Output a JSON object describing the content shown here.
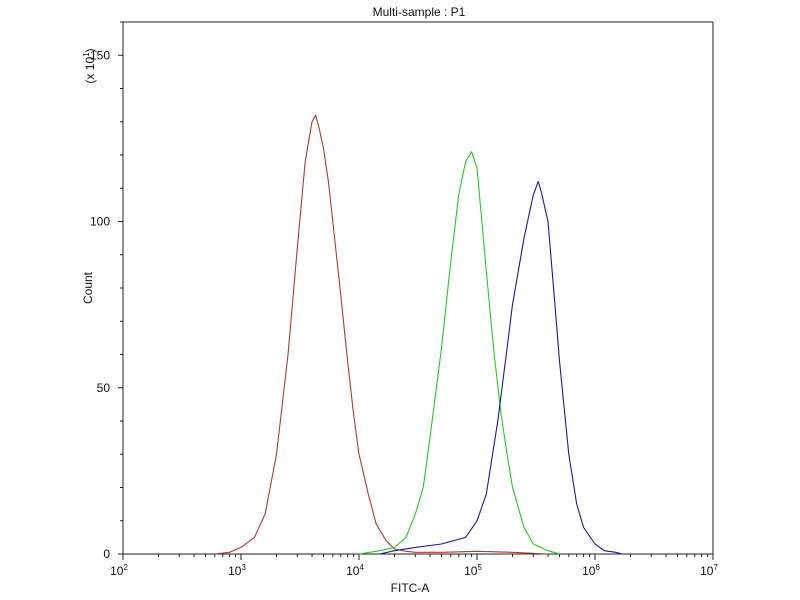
{
  "chart_data": {
    "type": "line",
    "title": "Multi-sample : P1",
    "xlabel": "FITC-A",
    "ylabel": "Count",
    "y_multiplier": {
      "base": "(x 10",
      "exp": "1",
      "close": ")"
    },
    "x_scale": "log",
    "xlim": [
      100,
      10000000
    ],
    "ylim": [
      0,
      160
    ],
    "x_ticks": [
      {
        "base": "10",
        "exp": "2",
        "value": 100
      },
      {
        "base": "10",
        "exp": "3",
        "value": 1000
      },
      {
        "base": "10",
        "exp": "4",
        "value": 10000
      },
      {
        "base": "10",
        "exp": "5",
        "value": 100000
      },
      {
        "base": "10",
        "exp": "6",
        "value": 1000000
      },
      {
        "base": "10",
        "exp": "7",
        "value": 10000000
      }
    ],
    "y_ticks": [
      {
        "label": "0",
        "value": 0
      },
      {
        "label": "50",
        "value": 50
      },
      {
        "label": "100",
        "value": 100
      },
      {
        "label": "150",
        "value": 150
      }
    ],
    "grid": false,
    "series": [
      {
        "color": "#b03a2e",
        "x": [
          600,
          800,
          1000,
          1300,
          1600,
          2000,
          2500,
          3000,
          3500,
          4000,
          4300,
          4600,
          5000,
          5500,
          6000,
          7000,
          8000,
          9000,
          10000,
          12000,
          14000,
          17000,
          20000,
          25000,
          30000,
          50000,
          100000,
          200000,
          400000
        ],
        "y": [
          0,
          0.5,
          2,
          5,
          12,
          30,
          60,
          92,
          118,
          130,
          132,
          128,
          122,
          112,
          100,
          78,
          58,
          42,
          30,
          18,
          9,
          4,
          1.5,
          0.8,
          0.5,
          0.5,
          0.8,
          0.5,
          0
        ]
      },
      {
        "color": "#22cc22",
        "x": [
          10000,
          15000,
          20000,
          25000,
          30000,
          35000,
          40000,
          50000,
          60000,
          70000,
          80000,
          90000,
          100000,
          110000,
          120000,
          140000,
          160000,
          180000,
          200000,
          250000,
          300000,
          400000,
          500000
        ],
        "y": [
          0,
          1,
          2,
          5,
          12,
          20,
          35,
          62,
          88,
          108,
          118,
          121,
          116,
          100,
          85,
          60,
          42,
          30,
          20,
          8,
          3,
          1,
          0
        ]
      },
      {
        "color": "#1a1a99",
        "x": [
          15000,
          20000,
          30000,
          50000,
          80000,
          100000,
          120000,
          150000,
          180000,
          200000,
          250000,
          300000,
          330000,
          350000,
          400000,
          450000,
          500000,
          600000,
          700000,
          800000,
          1000000,
          1200000,
          1500000,
          1700000
        ],
        "y": [
          0,
          1,
          2,
          3,
          5,
          10,
          18,
          40,
          62,
          75,
          95,
          108,
          112,
          109,
          100,
          78,
          58,
          30,
          15,
          8,
          3,
          1,
          0.5,
          0
        ]
      }
    ]
  }
}
